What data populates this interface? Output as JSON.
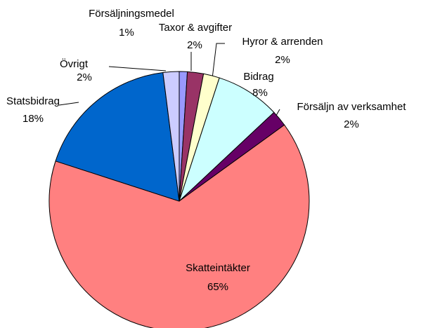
{
  "chart_data": {
    "type": "pie",
    "categories": [
      "Försäljningsmedel",
      "Taxor & avgifter",
      "Hyror & arrenden",
      "Bidrag",
      "Försäljn av verksamhet",
      "Skatteintäkter",
      "Statsbidrag",
      "Övrigt"
    ],
    "values": [
      1,
      2,
      2,
      8,
      2,
      65,
      18,
      2
    ],
    "value_labels": [
      "1%",
      "2%",
      "2%",
      "8%",
      "2%",
      "65%",
      "18%",
      "2%"
    ],
    "colors": [
      "#9999ff",
      "#993366",
      "#ffffcc",
      "#ccffff",
      "#660066",
      "#ff8080",
      "#0066cc",
      "#ccccff"
    ]
  }
}
